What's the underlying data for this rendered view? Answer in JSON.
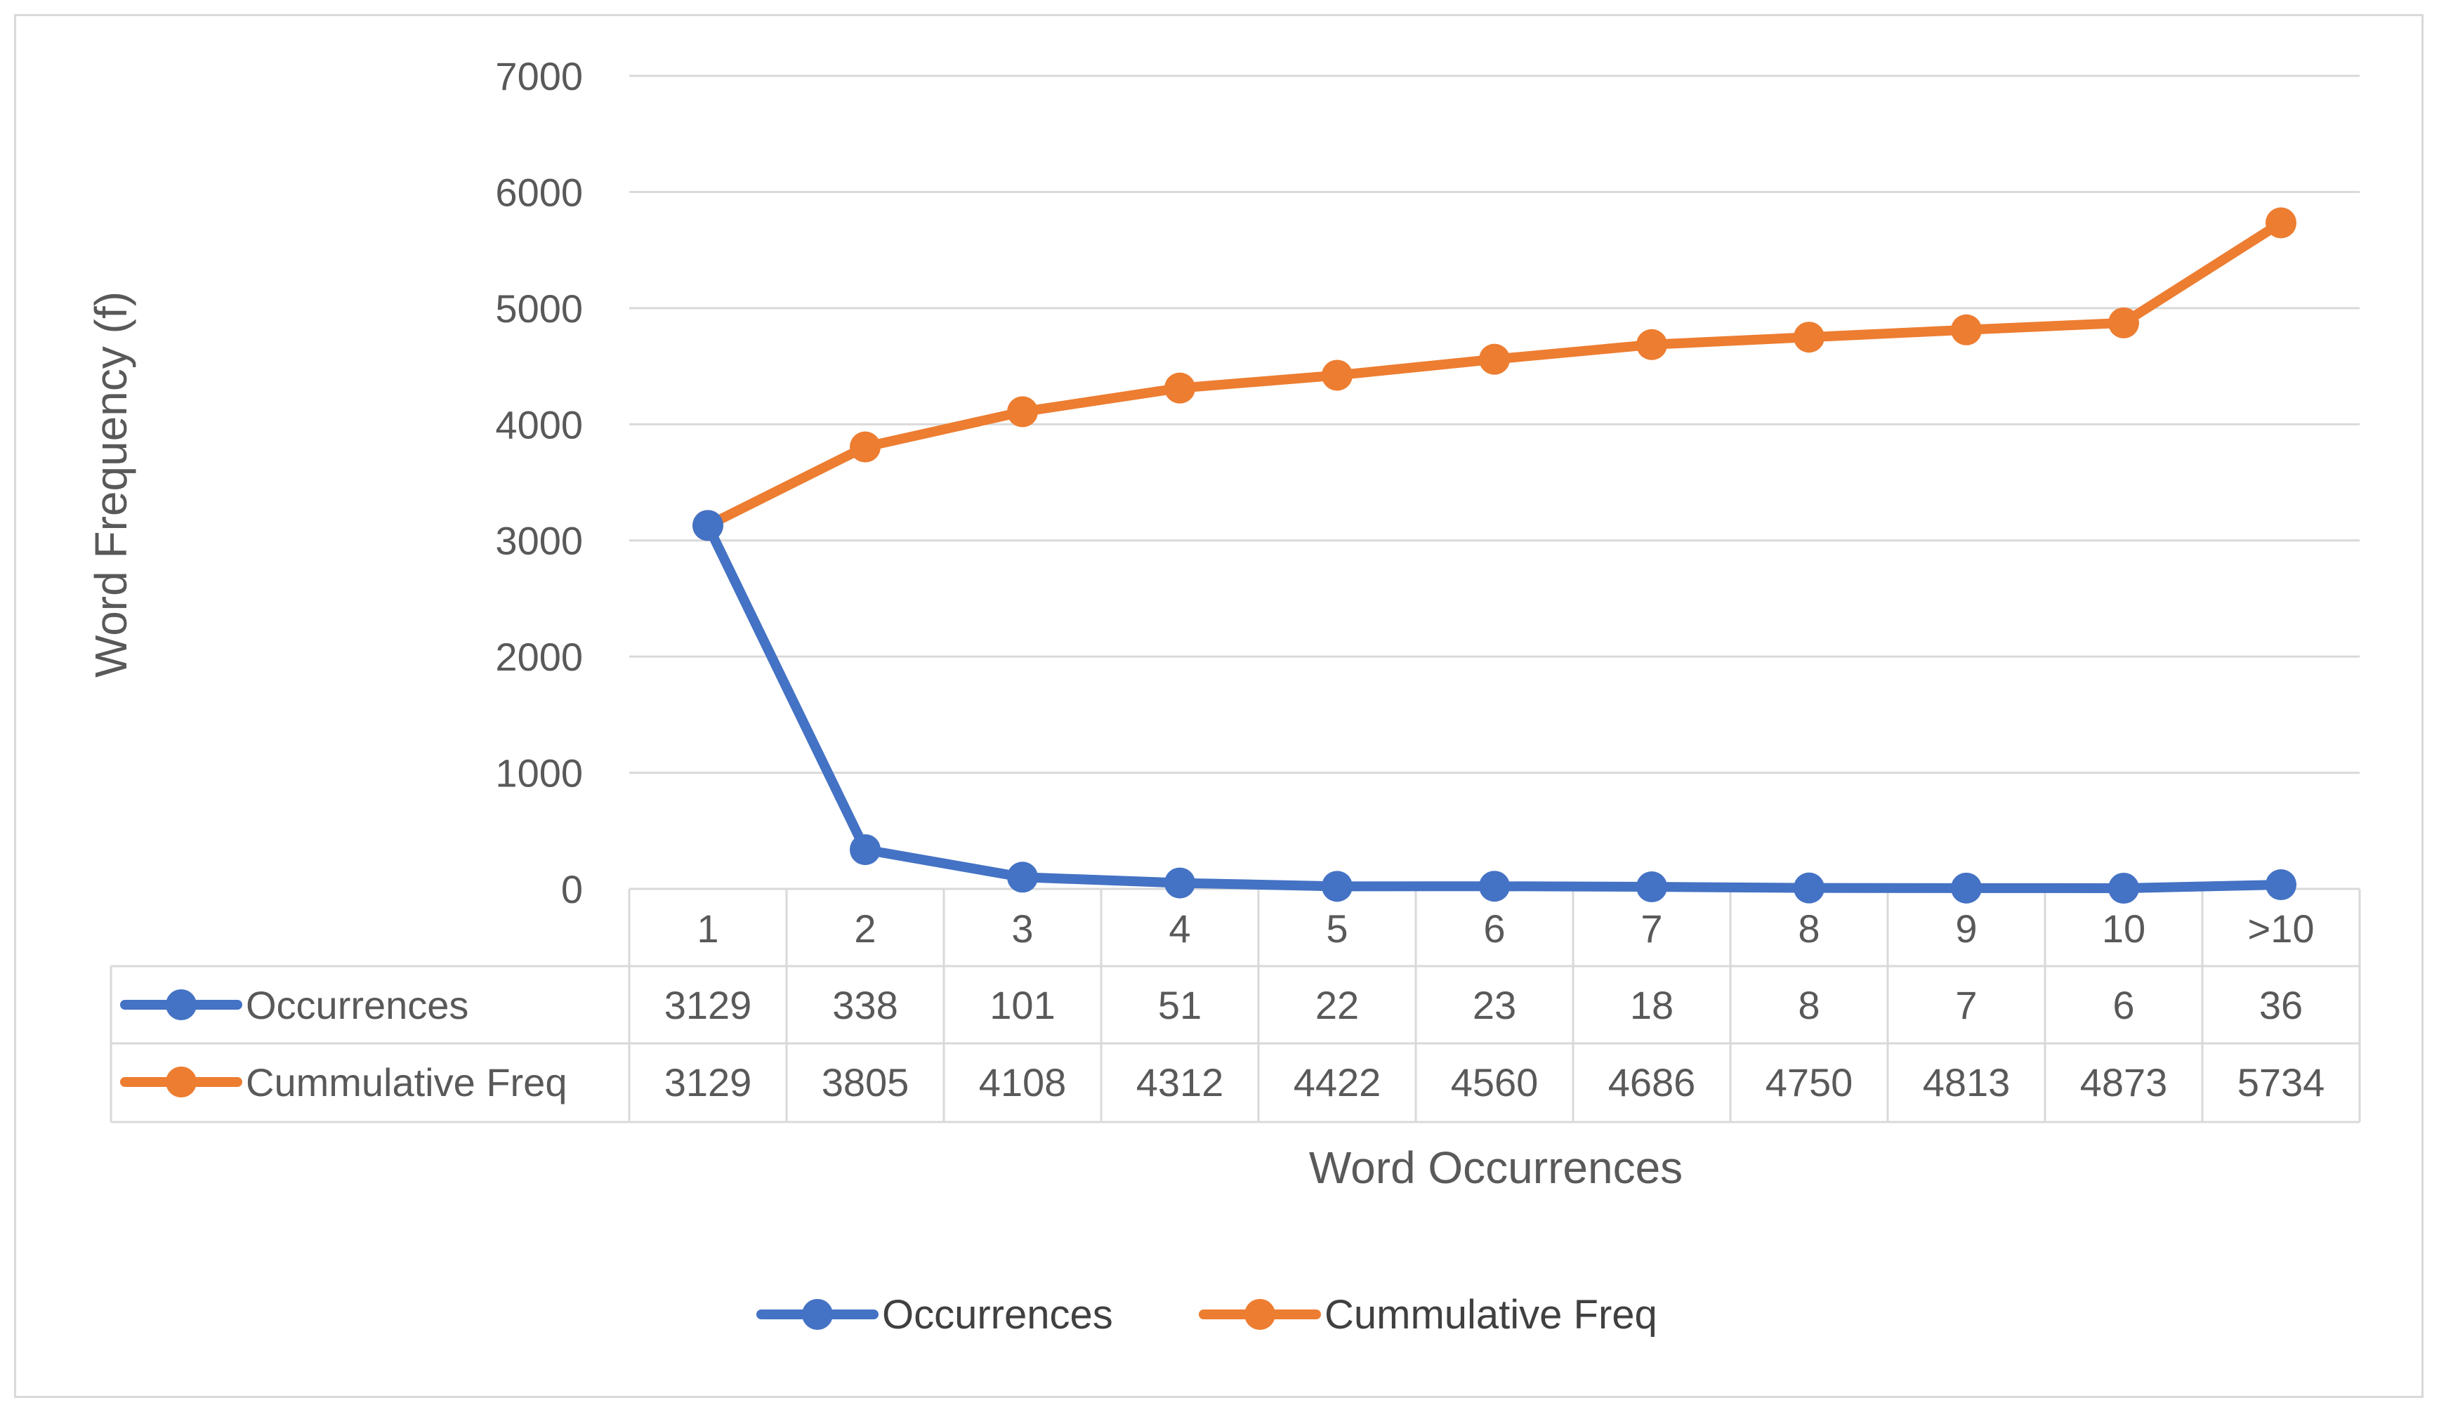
{
  "chart_data": {
    "type": "line",
    "title": "",
    "xlabel": "Word Occurrences",
    "ylabel": "Word Frequency (f)",
    "ylim": [
      0,
      7000
    ],
    "yticks": [
      "0",
      "1000",
      "2000",
      "3000",
      "4000",
      "5000",
      "6000",
      "7000"
    ],
    "grid": true,
    "legend_position": "bottom",
    "data_table": true,
    "categories": [
      "1",
      "2",
      "3",
      "4",
      "5",
      "6",
      "7",
      "8",
      "9",
      "10",
      ">10"
    ],
    "series": [
      {
        "name": "Occurrences",
        "color": "#4472C4",
        "values": [
          3129,
          338,
          101,
          51,
          22,
          23,
          18,
          8,
          7,
          6,
          36
        ],
        "labels": [
          "3129",
          "338",
          "101",
          "51",
          "22",
          "23",
          "18",
          "8",
          "7",
          "6",
          "36"
        ]
      },
      {
        "name": "Cummulative Freq",
        "color": "#ED7D31",
        "values": [
          3129,
          3805,
          4108,
          4312,
          4422,
          4560,
          4686,
          4750,
          4813,
          4873,
          5734
        ],
        "labels": [
          "3129",
          "3805",
          "4108",
          "4312",
          "4422",
          "4560",
          "4686",
          "4750",
          "4813",
          "4873",
          "5734"
        ]
      }
    ]
  }
}
